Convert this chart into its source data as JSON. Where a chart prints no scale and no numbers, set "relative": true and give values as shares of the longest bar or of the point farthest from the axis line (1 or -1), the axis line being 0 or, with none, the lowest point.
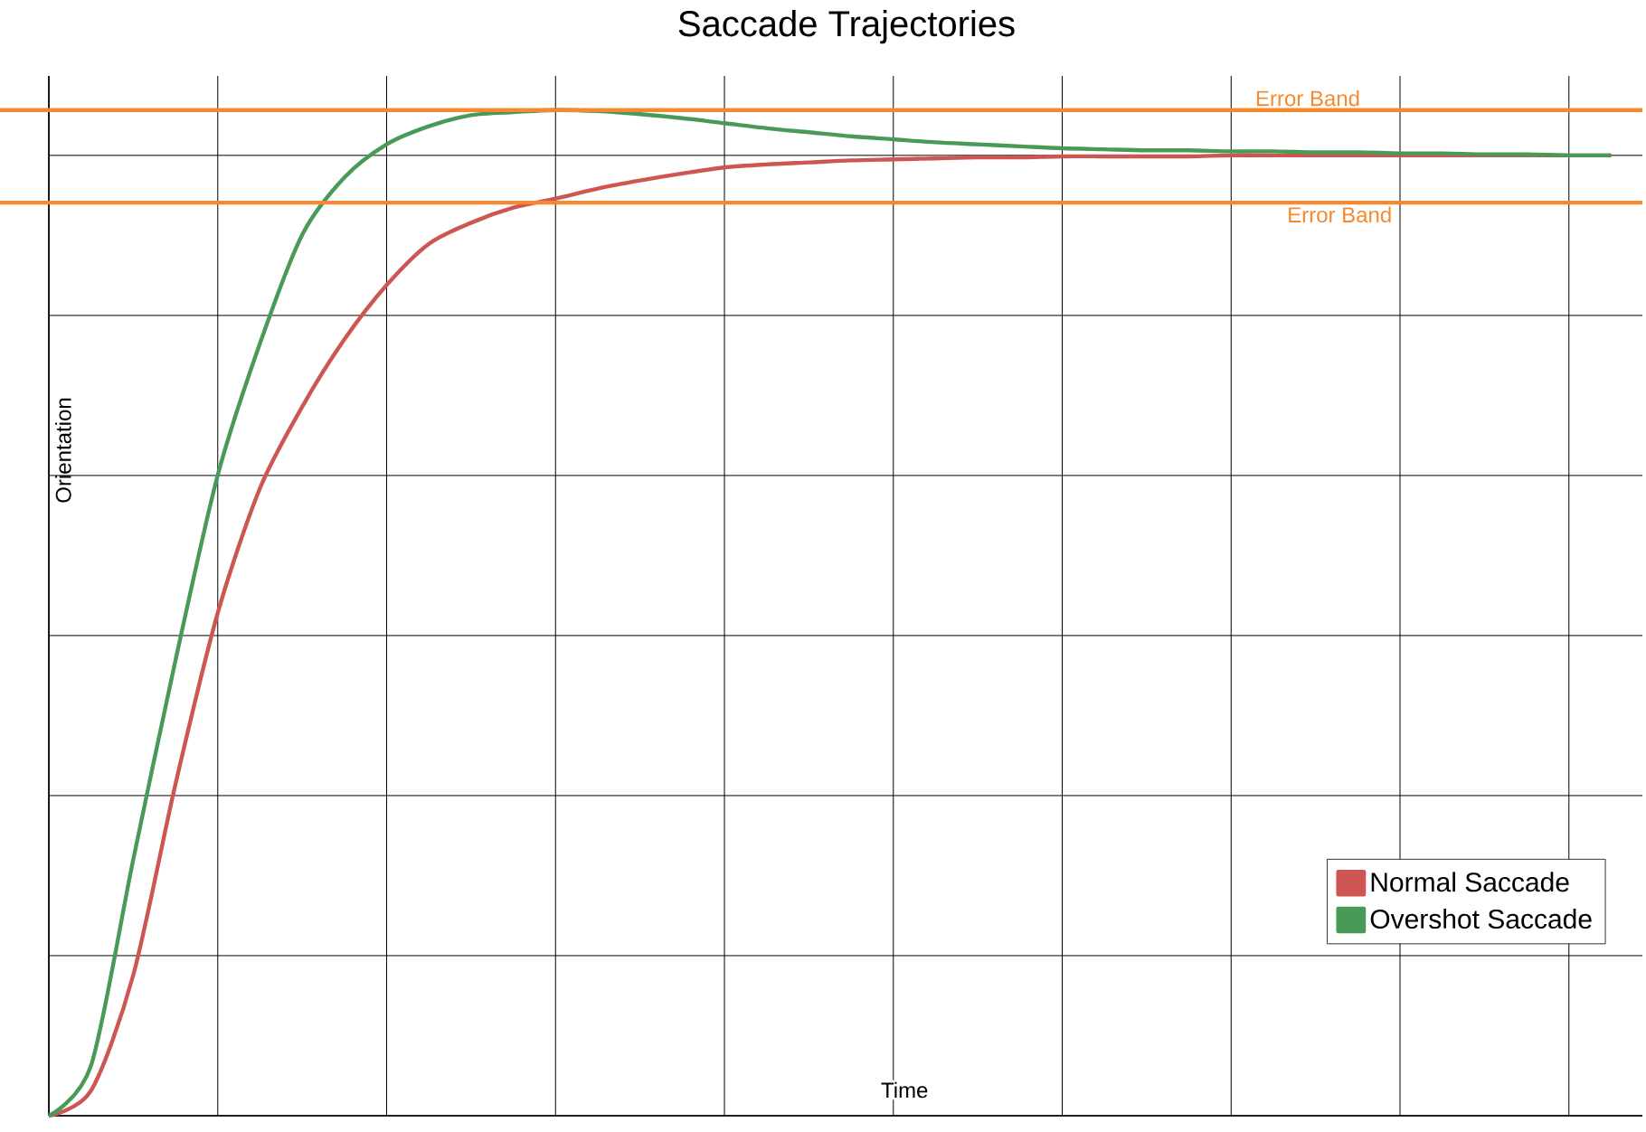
{
  "chart_data": {
    "type": "line",
    "title": "Saccade Trajectories",
    "xlabel": "Time",
    "ylabel": "Orientation",
    "relative": true,
    "grid": true,
    "legend": "bottom right",
    "marker": "none",
    "line_style": "solid",
    "categories": [
      null,
      null,
      null,
      null,
      null,
      null,
      null,
      null,
      null,
      null,
      null,
      null,
      null,
      null,
      null,
      null,
      null,
      null,
      null,
      null,
      null,
      null,
      null,
      null,
      null,
      null,
      null,
      null,
      null,
      null,
      null,
      null,
      null,
      null,
      null,
      null,
      null,
      null
    ],
    "series": [
      {
        "name": "Normal Saccade",
        "color": "#cd5652",
        "values": [
          0,
          0.025,
          0.14,
          0.33,
          0.5,
          0.624,
          0.705,
          0.772,
          0.826,
          0.867,
          0.888,
          0.903,
          0.912,
          0.922,
          0.93,
          0.937,
          0.943,
          0.946,
          0.948,
          0.95,
          0.951,
          0.952,
          0.953,
          0.953,
          0.954,
          0.954,
          0.954,
          0.954,
          0.955,
          0.955,
          0.955,
          0.955,
          0.955,
          0.955,
          0.955,
          0.955,
          0.955,
          0.955
        ]
      },
      {
        "name": "Overshot Saccade",
        "color": "#4a9a57",
        "values": [
          0,
          0.05,
          0.255,
          0.453,
          0.637,
          0.768,
          0.876,
          0.933,
          0.966,
          0.984,
          0.995,
          0.998,
          1.0,
          0.999,
          0.996,
          0.992,
          0.987,
          0.982,
          0.978,
          0.974,
          0.971,
          0.968,
          0.966,
          0.964,
          0.962,
          0.961,
          0.96,
          0.96,
          0.959,
          0.959,
          0.958,
          0.958,
          0.957,
          0.957,
          0.956,
          0.956,
          0.955,
          0.955
        ]
      }
    ],
    "ref_lines": [
      {
        "axis": "y",
        "value": 1.0,
        "label": "Error Band",
        "color": "#f5892f"
      },
      {
        "axis": "y",
        "value": 0.908,
        "label": "Error Band",
        "color": "#f5892f"
      }
    ]
  }
}
